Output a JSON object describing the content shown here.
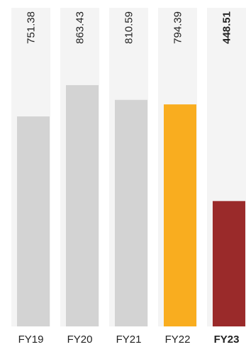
{
  "chart_data": {
    "type": "bar",
    "categories": [
      "FY19",
      "FY20",
      "FY21",
      "FY22",
      "FY23"
    ],
    "values": [
      751.38,
      863.43,
      810.59,
      794.39,
      448.51
    ],
    "value_labels": [
      "751.38",
      "863.43",
      "810.59",
      "794.39",
      "448.51"
    ],
    "title": "",
    "xlabel": "",
    "ylabel": "",
    "ylim": [
      0,
      1140
    ],
    "grid": false,
    "legend": "none",
    "colors": [
      "#d3d3d3",
      "#d3d3d3",
      "#d3d3d3",
      "#f9ad1f",
      "#9a2a2a"
    ],
    "bold": [
      false,
      false,
      false,
      false,
      true
    ]
  }
}
